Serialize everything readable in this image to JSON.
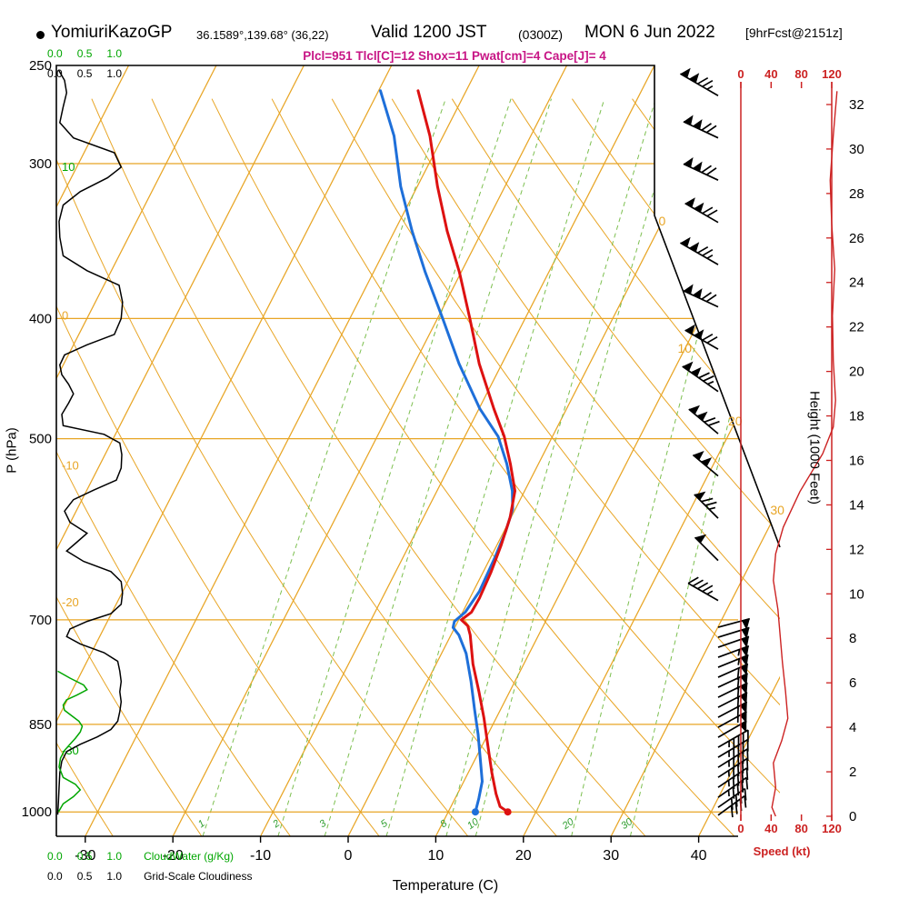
{
  "header": {
    "station": "YomiuriKazoGP",
    "coords": "36.1589°,139.68° (36,22)",
    "valid": "Valid 1200 JST",
    "valid_z": "(0300Z)",
    "date": "MON 6 Jun 2022",
    "fcst": "[9hrFcst@2151z]",
    "params": "Plcl=951 Tlcl[C]=12 Shox=11 Pwat[cm]=4 Cape[J]= 4"
  },
  "axes": {
    "pressure": {
      "label": "P (hPa)",
      "ticks": [
        250,
        300,
        400,
        500,
        700,
        850,
        1000
      ]
    },
    "temperature": {
      "label": "Temperature (C)",
      "ticks": [
        -30,
        -20,
        -10,
        0,
        10,
        20,
        30,
        40
      ]
    },
    "height": {
      "label": "Height (1000 Feet)",
      "ticks": [
        0,
        2,
        4,
        6,
        8,
        10,
        12,
        14,
        16,
        18,
        20,
        22,
        24,
        26,
        28,
        30,
        32
      ]
    },
    "speed": {
      "label": "Speed (kt)",
      "ticks": [
        0,
        40,
        80,
        120
      ]
    },
    "cloudwater": {
      "label": "CloudWater (g/Kg)",
      "scale": [
        "0.0",
        "0.5",
        "1.0"
      ]
    },
    "cloudiness": {
      "label": "Grid-Scale Cloudiness",
      "scale": [
        "0.0",
        "0.5",
        "1.0"
      ]
    }
  },
  "grid": {
    "isobars": [
      300,
      400,
      500,
      700,
      850,
      1000
    ],
    "isotherm_step": 10,
    "isotherm_range": [
      -80,
      40
    ],
    "dry_adiabat_range": [
      -30,
      120
    ],
    "mixing_ratios": [
      1,
      2,
      3,
      5,
      8,
      10,
      20,
      30
    ],
    "edge_isotherm_labels": [
      0,
      10,
      20,
      30
    ],
    "left_adiabat_labels": [
      {
        "text": "10",
        "color": "green",
        "p": 302
      },
      {
        "text": "0",
        "color": "orange",
        "p": 398
      },
      {
        "text": "-10",
        "color": "orange",
        "p": 526
      },
      {
        "text": "-20",
        "color": "orange",
        "p": 678
      },
      {
        "text": "-30",
        "color": "green",
        "p": 893
      }
    ]
  },
  "chart_data": {
    "type": "line",
    "subtype": "skewt-log-p",
    "pressure_range_hpa": [
      250,
      1046
    ],
    "temperature_c": [
      [
        262,
        -35.5
      ],
      [
        285,
        -31.5
      ],
      [
        313,
        -27.7
      ],
      [
        340,
        -24.0
      ],
      [
        367,
        -20.2
      ],
      [
        400,
        -16.3
      ],
      [
        435,
        -12.6
      ],
      [
        473,
        -8.3
      ],
      [
        498,
        -5.5
      ],
      [
        524,
        -3.2
      ],
      [
        551,
        -1.1
      ],
      [
        579,
        -0.1
      ],
      [
        610,
        0.5
      ],
      [
        641,
        0.9
      ],
      [
        672,
        1.1
      ],
      [
        690,
        1.0
      ],
      [
        700,
        0.3
      ],
      [
        708,
        1.4
      ],
      [
        720,
        2.2
      ],
      [
        760,
        4.2
      ],
      [
        800,
        6.5
      ],
      [
        840,
        8.6
      ],
      [
        885,
        10.7
      ],
      [
        930,
        12.7
      ],
      [
        967,
        14.4
      ],
      [
        990,
        15.6
      ],
      [
        1000,
        16.8
      ]
    ],
    "dewpoint_c": [
      [
        262,
        -39.8
      ],
      [
        285,
        -35.6
      ],
      [
        313,
        -31.9
      ],
      [
        340,
        -28.0
      ],
      [
        367,
        -24.1
      ],
      [
        400,
        -19.4
      ],
      [
        435,
        -14.9
      ],
      [
        473,
        -9.9
      ],
      [
        498,
        -6.2
      ],
      [
        524,
        -3.6
      ],
      [
        551,
        -1.4
      ],
      [
        570,
        -0.3
      ],
      [
        594,
        0.2
      ],
      [
        625,
        0.5
      ],
      [
        664,
        0.7
      ],
      [
        690,
        0.3
      ],
      [
        702,
        -0.4
      ],
      [
        710,
        -0.2
      ],
      [
        720,
        0.9
      ],
      [
        745,
        2.8
      ],
      [
        785,
        5.0
      ],
      [
        826,
        7.0
      ],
      [
        866,
        8.9
      ],
      [
        912,
        10.8
      ],
      [
        945,
        12.1
      ],
      [
        975,
        12.7
      ],
      [
        1000,
        13.1
      ]
    ],
    "wind_barbs": [
      [
        32.4,
        300,
        125
      ],
      [
        30.5,
        295,
        120
      ],
      [
        28.6,
        295,
        120
      ],
      [
        26.7,
        300,
        120
      ],
      [
        24.8,
        300,
        125
      ],
      [
        22.9,
        295,
        120
      ],
      [
        21.0,
        300,
        120
      ],
      [
        19.1,
        305,
        125
      ],
      [
        17.2,
        310,
        120
      ],
      [
        15.3,
        310,
        100
      ],
      [
        13.4,
        315,
        75
      ],
      [
        11.5,
        315,
        50
      ],
      [
        9.7,
        300,
        45
      ],
      [
        8.5,
        75,
        50
      ],
      [
        8.05,
        73,
        50
      ],
      [
        7.6,
        71,
        52
      ],
      [
        7.15,
        70,
        55
      ],
      [
        6.7,
        68,
        55
      ],
      [
        6.25,
        66,
        58
      ],
      [
        5.8,
        65,
        60
      ],
      [
        5.35,
        64,
        60
      ],
      [
        4.9,
        63,
        62
      ],
      [
        4.45,
        62,
        60
      ],
      [
        4.0,
        61,
        55
      ],
      [
        3.55,
        60,
        50
      ],
      [
        3.1,
        60,
        47
      ],
      [
        2.65,
        59,
        45
      ],
      [
        2.2,
        58,
        45
      ],
      [
        1.75,
        57,
        45
      ],
      [
        1.3,
        56,
        45
      ],
      [
        0.85,
        55,
        43
      ],
      [
        0.4,
        55,
        41
      ],
      [
        0.05,
        54,
        40
      ]
    ],
    "wind_speed_kt": [
      [
        32.6,
        127
      ],
      [
        30.6,
        122
      ],
      [
        28.6,
        118
      ],
      [
        26.6,
        120
      ],
      [
        24.6,
        124
      ],
      [
        22.5,
        121
      ],
      [
        20.5,
        122
      ],
      [
        18.7,
        125
      ],
      [
        17.5,
        122
      ],
      [
        16.3,
        108
      ],
      [
        14.6,
        78
      ],
      [
        13.0,
        56
      ],
      [
        11.8,
        46
      ],
      [
        10.6,
        43
      ],
      [
        9.3,
        49
      ],
      [
        8.1,
        52
      ],
      [
        6.9,
        55
      ],
      [
        5.6,
        59
      ],
      [
        4.4,
        62
      ],
      [
        3.4,
        54
      ],
      [
        2.4,
        43
      ],
      [
        1.3,
        46
      ],
      [
        0.4,
        41
      ],
      [
        0.0,
        46
      ]
    ],
    "cloudiness_frac": [
      [
        252,
        0.03
      ],
      [
        257,
        0.12
      ],
      [
        263,
        0.15
      ],
      [
        270,
        0.1
      ],
      [
        278,
        0.05
      ],
      [
        286,
        0.25
      ],
      [
        294,
        0.85
      ],
      [
        302,
        0.95
      ],
      [
        308,
        0.75
      ],
      [
        316,
        0.35
      ],
      [
        324,
        0.1
      ],
      [
        334,
        0.04
      ],
      [
        344,
        0.05
      ],
      [
        356,
        0.1
      ],
      [
        366,
        0.45
      ],
      [
        376,
        0.92
      ],
      [
        388,
        0.97
      ],
      [
        400,
        0.95
      ],
      [
        412,
        0.85
      ],
      [
        420,
        0.45
      ],
      [
        428,
        0.12
      ],
      [
        436,
        0.05
      ],
      [
        444,
        0.08
      ],
      [
        452,
        0.18
      ],
      [
        460,
        0.25
      ],
      [
        468,
        0.18
      ],
      [
        478,
        0.08
      ],
      [
        488,
        0.1
      ],
      [
        496,
        0.7
      ],
      [
        504,
        0.93
      ],
      [
        515,
        0.96
      ],
      [
        528,
        0.95
      ],
      [
        540,
        0.88
      ],
      [
        550,
        0.55
      ],
      [
        560,
        0.25
      ],
      [
        572,
        0.12
      ],
      [
        584,
        0.2
      ],
      [
        596,
        0.45
      ],
      [
        606,
        0.3
      ],
      [
        616,
        0.15
      ],
      [
        628,
        0.4
      ],
      [
        640,
        0.8
      ],
      [
        652,
        0.95
      ],
      [
        666,
        0.97
      ],
      [
        680,
        0.95
      ],
      [
        692,
        0.8
      ],
      [
        702,
        0.45
      ],
      [
        712,
        0.2
      ],
      [
        722,
        0.15
      ],
      [
        732,
        0.35
      ],
      [
        744,
        0.7
      ],
      [
        756,
        0.9
      ],
      [
        770,
        0.93
      ],
      [
        785,
        0.95
      ],
      [
        800,
        0.93
      ],
      [
        815,
        0.95
      ],
      [
        830,
        0.93
      ],
      [
        845,
        0.9
      ],
      [
        858,
        0.8
      ],
      [
        870,
        0.6
      ],
      [
        882,
        0.35
      ],
      [
        894,
        0.15
      ],
      [
        910,
        0.08
      ],
      [
        930,
        0.05
      ],
      [
        955,
        0.04
      ],
      [
        980,
        0.03
      ],
      [
        1005,
        0.02
      ]
    ],
    "cloudwater_gkg": [
      [
        770,
        0.02
      ],
      [
        780,
        0.2
      ],
      [
        790,
        0.4
      ],
      [
        797,
        0.45
      ],
      [
        805,
        0.3
      ],
      [
        812,
        0.15
      ],
      [
        820,
        0.1
      ],
      [
        828,
        0.12
      ],
      [
        836,
        0.22
      ],
      [
        845,
        0.33
      ],
      [
        853,
        0.38
      ],
      [
        862,
        0.35
      ],
      [
        872,
        0.28
      ],
      [
        882,
        0.2
      ],
      [
        892,
        0.12
      ],
      [
        905,
        0.06
      ],
      [
        920,
        0.04
      ],
      [
        938,
        0.1
      ],
      [
        950,
        0.28
      ],
      [
        960,
        0.35
      ],
      [
        972,
        0.25
      ],
      [
        985,
        0.1
      ],
      [
        1000,
        0.03
      ]
    ]
  },
  "colors": {
    "grid_orange": "#e8a525",
    "green": "#00a600",
    "mixing_green": "#7cbf4f",
    "mixing_label_green": "#2f9e2f",
    "temp_red": "#dd1111",
    "dew_blue": "#1e6fd9",
    "speed_red": "#cc2222",
    "params_magenta": "#C71585"
  }
}
